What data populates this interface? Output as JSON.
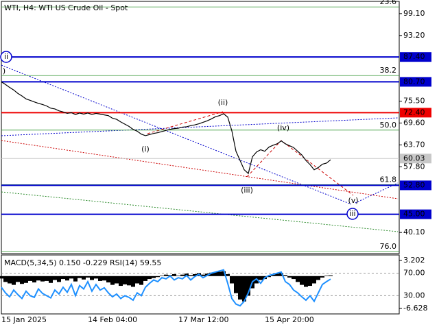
{
  "chart_data": [
    {
      "type": "line",
      "title": "WTI, H4:  WTI US Crude Oil - Spot",
      "color": "#000000",
      "categories": [
        "15 Jan 2025",
        null,
        null,
        null,
        null,
        null,
        null,
        null,
        null,
        null,
        null,
        null,
        null,
        null,
        null,
        null,
        null,
        null,
        null,
        null,
        null,
        "14 Feb 04:00",
        null,
        null,
        null,
        null,
        null,
        null,
        null,
        null,
        null,
        null,
        null,
        null,
        null,
        null,
        null,
        null,
        null,
        null,
        null,
        null,
        null,
        "17 Mar 12:00",
        null,
        null,
        null,
        null,
        null,
        null,
        null,
        null,
        null,
        null,
        null,
        null,
        null,
        null,
        null,
        null,
        null,
        null,
        null,
        null,
        "15 Apr 20:00",
        null,
        null,
        null,
        null,
        null,
        null,
        null,
        null,
        null,
        null,
        null,
        null,
        null,
        null,
        null,
        null
      ],
      "values": [
        80.7,
        80.0,
        79.2,
        78.5,
        77.6,
        76.9,
        76.1,
        75.7,
        75.3,
        74.9,
        74.6,
        74.2,
        73.6,
        73.4,
        72.9,
        72.6,
        72.2,
        72.4,
        71.9,
        72.3,
        72.0,
        72.3,
        71.9,
        72.2,
        72.0,
        71.8,
        71.6,
        70.9,
        70.6,
        69.9,
        69.3,
        68.7,
        67.9,
        67.4,
        66.6,
        66.2,
        66.5,
        66.8,
        67.0,
        67.3,
        67.6,
        67.9,
        68.1,
        68.2,
        68.5,
        68.6,
        68.9,
        69.1,
        69.4,
        69.8,
        70.2,
        70.7,
        71.3,
        71.6,
        72.1,
        71.2,
        67.5,
        62.0,
        59.5,
        57.0,
        56.0,
        60.5,
        61.8,
        62.4,
        62.0,
        63.1,
        63.6,
        64.0,
        64.8,
        64.0,
        63.5,
        63.0,
        62.0,
        61.0,
        59.5,
        58.4,
        57.0,
        57.6,
        58.5,
        58.8,
        59.7
      ],
      "ylim": [
        34.4,
        102.4
      ],
      "yticks": [
        {
          "value": 99.1,
          "label": "99.10"
        },
        {
          "value": 93.2,
          "label": "93.20"
        },
        {
          "value": 75.5,
          "label": "75.50"
        },
        {
          "value": 69.6,
          "label": "69.60"
        },
        {
          "value": 63.7,
          "label": "63.70"
        },
        {
          "value": 57.8,
          "label": "57.80"
        },
        {
          "value": 40.1,
          "label": "40.10"
        }
      ],
      "levels": [
        {
          "value": 87.4,
          "label": "87.40",
          "color": "#0000cc"
        },
        {
          "value": 80.7,
          "label": "80.70",
          "color": "#0000cc"
        },
        {
          "value": 72.4,
          "label": "72.40",
          "color": "#ee0000"
        },
        {
          "value": 52.8,
          "label": "52.80",
          "color": "#0000cc"
        },
        {
          "value": 45,
          "label": "45.00",
          "color": "#0000cc"
        }
      ],
      "current_price": {
        "value": 60.03,
        "label": "60.03",
        "color": "#c8c8c8"
      },
      "fib_levels": [
        {
          "value": 100.9,
          "label": "23.6"
        },
        {
          "value": 82.4,
          "label": "38.2"
        },
        {
          "value": 67.7,
          "label": "50.0"
        },
        {
          "value": 53.0,
          "label": "61.8"
        },
        {
          "value": 35.0,
          "label": "76.0"
        }
      ],
      "fib_color": "#3a9a3a",
      "annotations": [
        {
          "text": ")",
          "color": "#cc0000"
        },
        {
          "text": "(i)",
          "color": "#cc0000"
        },
        {
          "text": "(ii)",
          "color": "#cc0000"
        },
        {
          "text": "(iii)",
          "color": "#cc0000"
        },
        {
          "text": "(iv)",
          "color": "#cc0000"
        },
        {
          "text": "(v)",
          "color": "#cc0000"
        },
        {
          "text": "ii",
          "color": "#0000cc"
        },
        {
          "text": "iii",
          "color": "#0000cc"
        }
      ]
    },
    {
      "type": "macd_rsi",
      "title": "MACD(5,34,5) 0.150 -0.229 RSI(14) 59.55",
      "ylim": [
        0,
        100
      ],
      "yticks": [
        {
          "value": 70,
          "label": "70.00"
        },
        {
          "value": 30,
          "label": "30.00"
        }
      ],
      "y2lim": [
        -6.628,
        3.202
      ],
      "y2ticks": [
        3.202,
        -6.628
      ],
      "series": [
        {
          "type": "bar",
          "axis": "y2",
          "color": "#000000",
          "values": [
            -0.5,
            -1.2,
            -1.5,
            -1.8,
            -1.2,
            -1.6,
            -1.4,
            -1.0,
            -1.3,
            -0.9,
            -1.1,
            -1.0,
            -1.4,
            -0.8,
            -1.2,
            -0.6,
            -0.9,
            -0.5,
            -1.1,
            -0.4,
            -0.7,
            -0.3,
            -0.8,
            -0.5,
            -1.0,
            -0.9,
            -1.3,
            -1.8,
            -1.5,
            -2.0,
            -1.7,
            -1.9,
            -2.2,
            -1.5,
            -1.8,
            -1.0,
            -0.6,
            -0.4,
            -0.2,
            0.1,
            0.3,
            0.2,
            0.4,
            0.1,
            0.3,
            0.5,
            0.2,
            0.4,
            0.6,
            0.3,
            0.5,
            0.7,
            0.8,
            0.9,
            1.0,
            0.4,
            -1.5,
            -3.5,
            -4.8,
            -5.2,
            -4.0,
            -2.5,
            -1.5,
            -0.8,
            -0.6,
            -0.2,
            0.3,
            0.5,
            0.6,
            0.2,
            -0.3,
            -0.6,
            -1.2,
            -1.8,
            -2.2,
            -2.0,
            -1.5,
            -0.8,
            -0.3,
            0.1,
            0.15
          ]
        },
        {
          "type": "line",
          "color": "#1e90ff",
          "values": [
            45,
            35,
            28,
            40,
            32,
            25,
            38,
            30,
            27,
            42,
            34,
            30,
            26,
            40,
            33,
            45,
            36,
            50,
            30,
            48,
            42,
            55,
            38,
            50,
            40,
            44,
            35,
            28,
            33,
            25,
            30,
            27,
            22,
            35,
            30,
            45,
            52,
            58,
            55,
            62,
            60,
            65,
            58,
            62,
            60,
            66,
            58,
            64,
            68,
            62,
            66,
            70,
            72,
            74,
            76,
            52,
            25,
            15,
            12,
            20,
            35,
            55,
            60,
            52,
            62,
            66,
            68,
            70,
            72,
            55,
            50,
            40,
            35,
            28,
            22,
            30,
            20,
            35,
            50,
            55,
            59.55
          ]
        }
      ]
    }
  ]
}
